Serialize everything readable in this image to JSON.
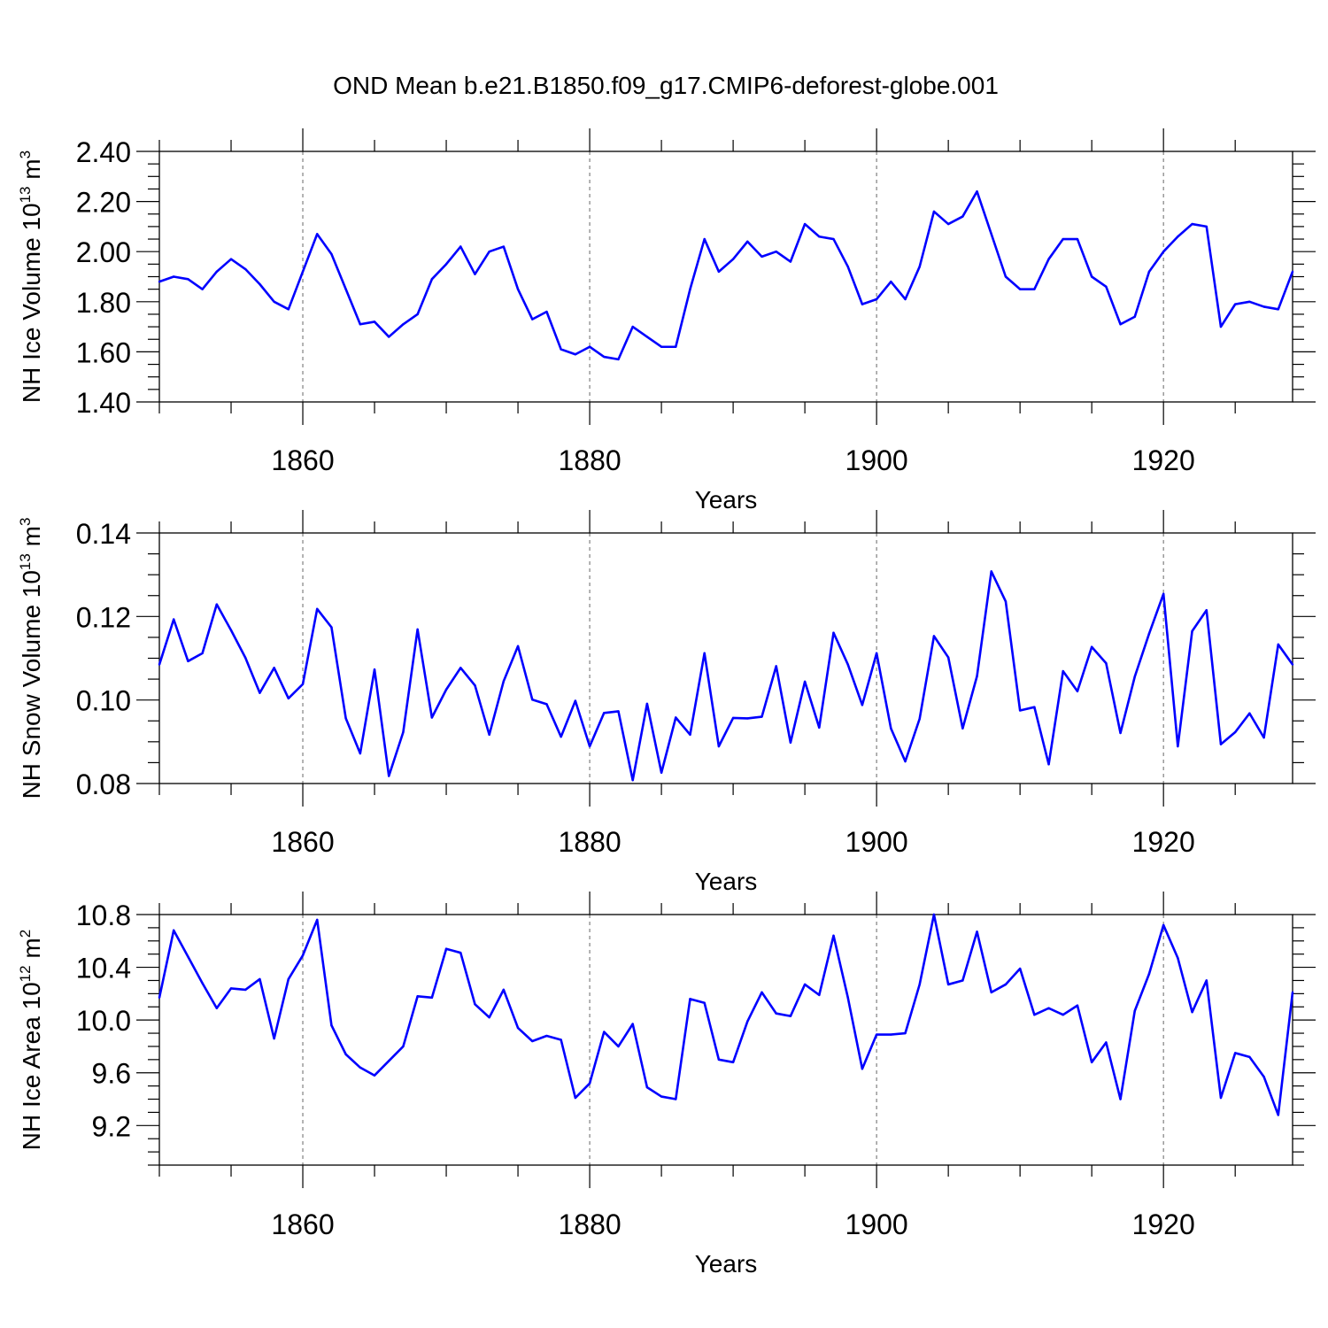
{
  "figure_title": "OND Mean b.e21.B1850.f09_g17.CMIP6-deforest-globe.001",
  "colors": {
    "line": "#0000ff",
    "axis": "#000000",
    "grid": "#808080"
  },
  "chart_data": [
    {
      "type": "line",
      "ylabel_main": "NH Ice Volume 10",
      "ylabel_exp": "13",
      "ylabel_unit": " m",
      "ylabel_unit_exp": "3",
      "xlabel": "Years",
      "xlim": [
        1850,
        1929
      ],
      "ylim": [
        1.4,
        2.4
      ],
      "yticks": [
        1.4,
        1.6,
        1.8,
        2.0,
        2.2,
        2.4
      ],
      "ytick_labels": [
        "1.40",
        "1.60",
        "1.80",
        "2.00",
        "2.20",
        "2.40"
      ],
      "ytick_minor_step": 0.05,
      "xticks": [
        1860,
        1880,
        1900,
        1920
      ],
      "xtick_labels": [
        "1860",
        "1880",
        "1900",
        "1920"
      ],
      "xtick_minor_step": 5,
      "vgrid": [
        1860,
        1880,
        1900,
        1920
      ],
      "x_start": 1850,
      "values": [
        1.88,
        1.9,
        1.89,
        1.85,
        1.92,
        1.97,
        1.93,
        1.87,
        1.8,
        1.77,
        1.92,
        2.07,
        1.99,
        1.85,
        1.71,
        1.72,
        1.66,
        1.71,
        1.75,
        1.89,
        1.95,
        2.02,
        1.91,
        2.0,
        2.02,
        1.85,
        1.73,
        1.76,
        1.61,
        1.59,
        1.62,
        1.58,
        1.57,
        1.7,
        1.66,
        1.62,
        1.62,
        1.85,
        2.05,
        1.92,
        1.97,
        2.04,
        1.98,
        2.0,
        1.96,
        2.11,
        2.06,
        2.05,
        1.94,
        1.79,
        1.81,
        1.88,
        1.81,
        1.94,
        2.16,
        2.11,
        2.14,
        2.24,
        2.07,
        1.9,
        1.85,
        1.85,
        1.97,
        2.05,
        2.05,
        1.9,
        1.86,
        1.71,
        1.74,
        1.92,
        2.0,
        2.06,
        2.11,
        2.1,
        1.7,
        1.79,
        1.8,
        1.78,
        1.77,
        1.92
      ]
    },
    {
      "type": "line",
      "ylabel_main": "NH Snow Volume 10",
      "ylabel_exp": "13",
      "ylabel_unit": " m",
      "ylabel_unit_exp": "3",
      "xlabel": "Years",
      "xlim": [
        1850,
        1929
      ],
      "ylim": [
        0.08,
        0.14
      ],
      "yticks": [
        0.08,
        0.1,
        0.12,
        0.14
      ],
      "ytick_labels": [
        "0.08",
        "0.10",
        "0.12",
        "0.14"
      ],
      "ytick_minor_step": 0.005,
      "xticks": [
        1860,
        1880,
        1900,
        1920
      ],
      "xtick_labels": [
        "1860",
        "1880",
        "1900",
        "1920"
      ],
      "xtick_minor_step": 5,
      "vgrid": [
        1860,
        1880,
        1900,
        1920
      ],
      "x_start": 1850,
      "values": [
        0.1085,
        0.1193,
        0.1093,
        0.1112,
        0.1229,
        0.1167,
        0.1101,
        0.1017,
        0.1077,
        0.1004,
        0.1038,
        0.1218,
        0.1174,
        0.0956,
        0.0872,
        0.1073,
        0.0818,
        0.0923,
        0.1169,
        0.0958,
        0.1025,
        0.1077,
        0.1035,
        0.0917,
        0.1045,
        0.1129,
        0.1001,
        0.099,
        0.0912,
        0.0998,
        0.0889,
        0.0969,
        0.0973,
        0.0808,
        0.0991,
        0.0826,
        0.0958,
        0.0917,
        0.1112,
        0.0889,
        0.0957,
        0.0956,
        0.096,
        0.1081,
        0.0898,
        0.1044,
        0.0934,
        0.1161,
        0.1085,
        0.0988,
        0.1112,
        0.0932,
        0.0853,
        0.0955,
        0.1153,
        0.1102,
        0.0932,
        0.1057,
        0.1308,
        0.1236,
        0.0975,
        0.0983,
        0.0846,
        0.1069,
        0.1021,
        0.1127,
        0.1088,
        0.0921,
        0.1056,
        0.1159,
        0.1254,
        0.0889,
        0.1165,
        0.1215,
        0.0894,
        0.0923,
        0.0968,
        0.091,
        0.1133,
        0.1085
      ]
    },
    {
      "type": "line",
      "ylabel_main": "NH Ice Area 10",
      "ylabel_exp": "12",
      "ylabel_unit": " m",
      "ylabel_unit_exp": "2",
      "xlabel": "Years",
      "xlim": [
        1850,
        1929
      ],
      "ylim": [
        8.9,
        10.8
      ],
      "yticks": [
        9.2,
        9.6,
        10.0,
        10.4,
        10.8
      ],
      "ytick_labels": [
        "9.2",
        "9.6",
        "10.0",
        "10.4",
        "10.8"
      ],
      "ytick_minor_step": 0.1,
      "xticks": [
        1860,
        1880,
        1900,
        1920
      ],
      "xtick_labels": [
        "1860",
        "1880",
        "1900",
        "1920"
      ],
      "xtick_minor_step": 5,
      "vgrid": [
        1860,
        1880,
        1900,
        1920
      ],
      "x_start": 1850,
      "values": [
        10.17,
        10.68,
        10.48,
        10.28,
        10.09,
        10.24,
        10.23,
        10.31,
        9.86,
        10.31,
        10.49,
        10.76,
        9.96,
        9.74,
        9.64,
        9.58,
        9.69,
        9.8,
        10.18,
        10.17,
        10.54,
        10.51,
        10.12,
        10.02,
        10.23,
        9.94,
        9.84,
        9.88,
        9.85,
        9.41,
        9.52,
        9.91,
        9.8,
        9.97,
        9.49,
        9.42,
        9.4,
        10.16,
        10.13,
        9.7,
        9.68,
        9.99,
        10.21,
        10.05,
        10.03,
        10.27,
        10.19,
        10.64,
        10.17,
        9.63,
        9.89,
        9.89,
        9.9,
        10.27,
        10.8,
        10.27,
        10.3,
        10.67,
        10.21,
        10.27,
        10.39,
        10.04,
        10.09,
        10.04,
        10.11,
        9.68,
        9.83,
        9.4,
        10.07,
        10.35,
        10.72,
        10.47,
        10.06,
        10.3,
        9.41,
        9.75,
        9.72,
        9.57,
        9.28,
        10.21
      ]
    }
  ]
}
